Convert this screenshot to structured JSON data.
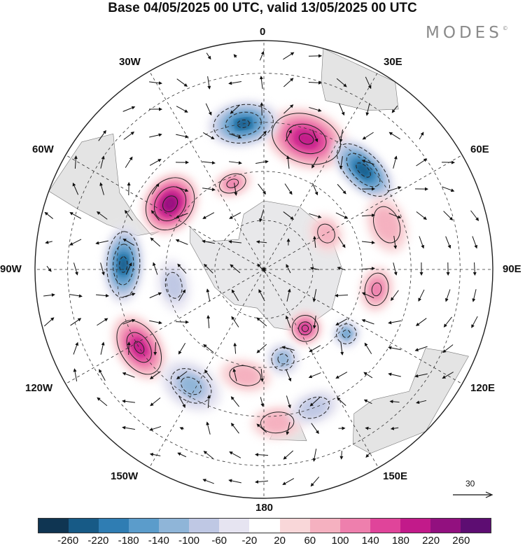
{
  "title": "Base 04/05/2025 00 UTC, valid 13/05/2025 00 UTC",
  "brand": "MODES",
  "brand_mark": "©",
  "longitude_labels": {
    "lon_0": "0",
    "lon_30e": "30E",
    "lon_60e": "60E",
    "lon_90e": "90E",
    "lon_120e": "120E",
    "lon_150e": "150E",
    "lon_180": "180",
    "lon_150w": "150W",
    "lon_120w": "120W",
    "lon_90w": "90W",
    "lon_60w": "60W",
    "lon_30w": "30W"
  },
  "reference_vector_label": "30",
  "colorbar": {
    "tick_labels": [
      "-260",
      "-220",
      "-180",
      "-140",
      "-100",
      "-60",
      "-20",
      "20",
      "60",
      "100",
      "140",
      "180",
      "220",
      "260"
    ],
    "colors": [
      "#0f3552",
      "#175a86",
      "#2f7db3",
      "#5b9ccb",
      "#8fb5d8",
      "#bfc8e4",
      "#e6e4f1",
      "#ffffff",
      "#f9d7d9",
      "#f5b1c0",
      "#ee7fad",
      "#e0449a",
      "#c21a8a",
      "#92107f",
      "#5d0d72"
    ]
  },
  "anomalies": [
    {
      "lon": 18,
      "lat": -48,
      "rx": 13,
      "ry": 9,
      "value": 210
    },
    {
      "lon": -8,
      "lat": -45,
      "rx": 11,
      "ry": 7,
      "value": -220
    },
    {
      "lon": 45,
      "lat": -47,
      "rx": 12,
      "ry": 6,
      "value": -240
    },
    {
      "lon": -55,
      "lat": -55,
      "rx": 10,
      "ry": 8,
      "value": 250
    },
    {
      "lon": -88,
      "lat": -47,
      "rx": 12,
      "ry": 6,
      "value": -230
    },
    {
      "lon": -122,
      "lat": -45,
      "rx": 11,
      "ry": 7,
      "value": 200
    },
    {
      "lon": 145,
      "lat": -68,
      "rx": 5,
      "ry": 5,
      "value": 180
    },
    {
      "lon": 128,
      "lat": -58,
      "rx": 4,
      "ry": 4,
      "value": -150
    },
    {
      "lon": 168,
      "lat": -62,
      "rx": 5,
      "ry": 5,
      "value": -110
    },
    {
      "lon": -148,
      "lat": -48,
      "rx": 10,
      "ry": 7,
      "value": -100
    },
    {
      "lon": 70,
      "lat": -50,
      "rx": 9,
      "ry": 6,
      "value": 90
    },
    {
      "lon": 100,
      "lat": -55,
      "rx": 7,
      "ry": 5,
      "value": 120
    },
    {
      "lon": -20,
      "lat": -62,
      "rx": 6,
      "ry": 4,
      "value": 110
    },
    {
      "lon": -170,
      "lat": -57,
      "rx": 8,
      "ry": 5,
      "value": 80
    },
    {
      "lon": 175,
      "lat": -43,
      "rx": 8,
      "ry": 5,
      "value": 90
    },
    {
      "lon": 160,
      "lat": -45,
      "rx": 8,
      "ry": 5,
      "value": -80
    },
    {
      "lon": 60,
      "lat": -68,
      "rx": 6,
      "ry": 5,
      "value": 60
    },
    {
      "lon": -100,
      "lat": -62,
      "rx": 8,
      "ry": 5,
      "value": -60
    }
  ]
}
